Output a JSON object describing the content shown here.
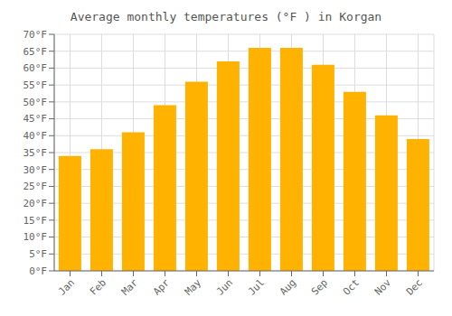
{
  "chart_data": {
    "type": "bar",
    "title": "Average monthly temperatures (°F ) in Korgan",
    "categories": [
      "Jan",
      "Feb",
      "Mar",
      "Apr",
      "May",
      "Jun",
      "Jul",
      "Aug",
      "Sep",
      "Oct",
      "Nov",
      "Dec"
    ],
    "values": [
      34,
      36,
      41,
      49,
      56,
      62,
      66,
      66,
      61,
      53,
      46,
      39
    ],
    "color": "#FFB300",
    "ylim": [
      0,
      70
    ],
    "yticks": [
      {
        "value": 0,
        "label": "0°F"
      },
      {
        "value": 5,
        "label": "5°F"
      },
      {
        "value": 10,
        "label": "10°F"
      },
      {
        "value": 15,
        "label": "15°F"
      },
      {
        "value": 20,
        "label": "20°F"
      },
      {
        "value": 25,
        "label": "25°F"
      },
      {
        "value": 30,
        "label": "30°F"
      },
      {
        "value": 35,
        "label": "35°F"
      },
      {
        "value": 40,
        "label": "40°F"
      },
      {
        "value": 45,
        "label": "45°F"
      },
      {
        "value": 50,
        "label": "50°F"
      },
      {
        "value": 55,
        "label": "55°F"
      },
      {
        "value": 60,
        "label": "60°F"
      },
      {
        "value": 65,
        "label": "65°F"
      },
      {
        "value": 70,
        "label": "70°F"
      }
    ],
    "grid": true
  }
}
